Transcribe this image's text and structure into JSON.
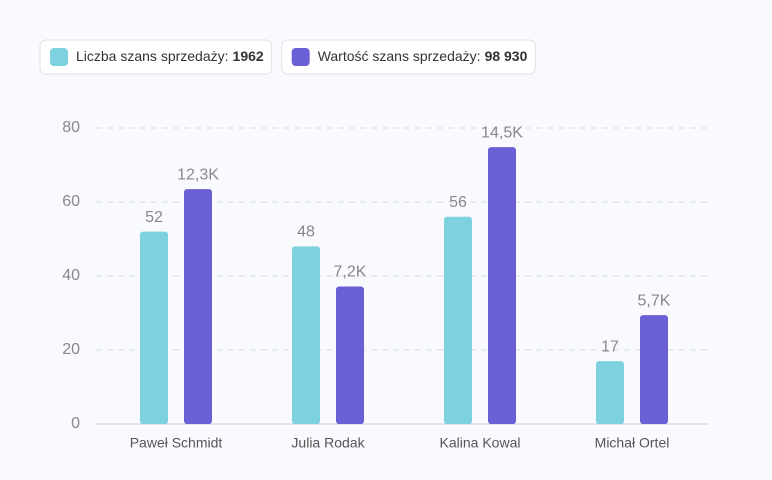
{
  "chart_data": {
    "type": "bar",
    "categories": [
      "Paweł Schmidt",
      "Julia Rodak",
      "Kalina Kowal",
      "Michał Ortel"
    ],
    "series": [
      {
        "name": "Liczba szans sprzedaży:",
        "total": 1962,
        "color": "#7ed2df",
        "values": [
          52,
          48,
          56,
          17
        ]
      },
      {
        "name": "Wartość szans sprzedaży:",
        "total": {
          "value": 98930,
          "label": "98 930"
        },
        "color": "#6b5fd5",
        "axis": "y2",
        "values": [
          12300,
          7200,
          14500,
          5700
        ],
        "value_labels": [
          "12,3K",
          "7,2K",
          "14,5K",
          "5,7K"
        ]
      }
    ],
    "ylim": [
      0,
      80
    ],
    "yticks": [
      0,
      20,
      40,
      60,
      80
    ],
    "y2lim": [
      0,
      15500
    ],
    "grid": true
  }
}
